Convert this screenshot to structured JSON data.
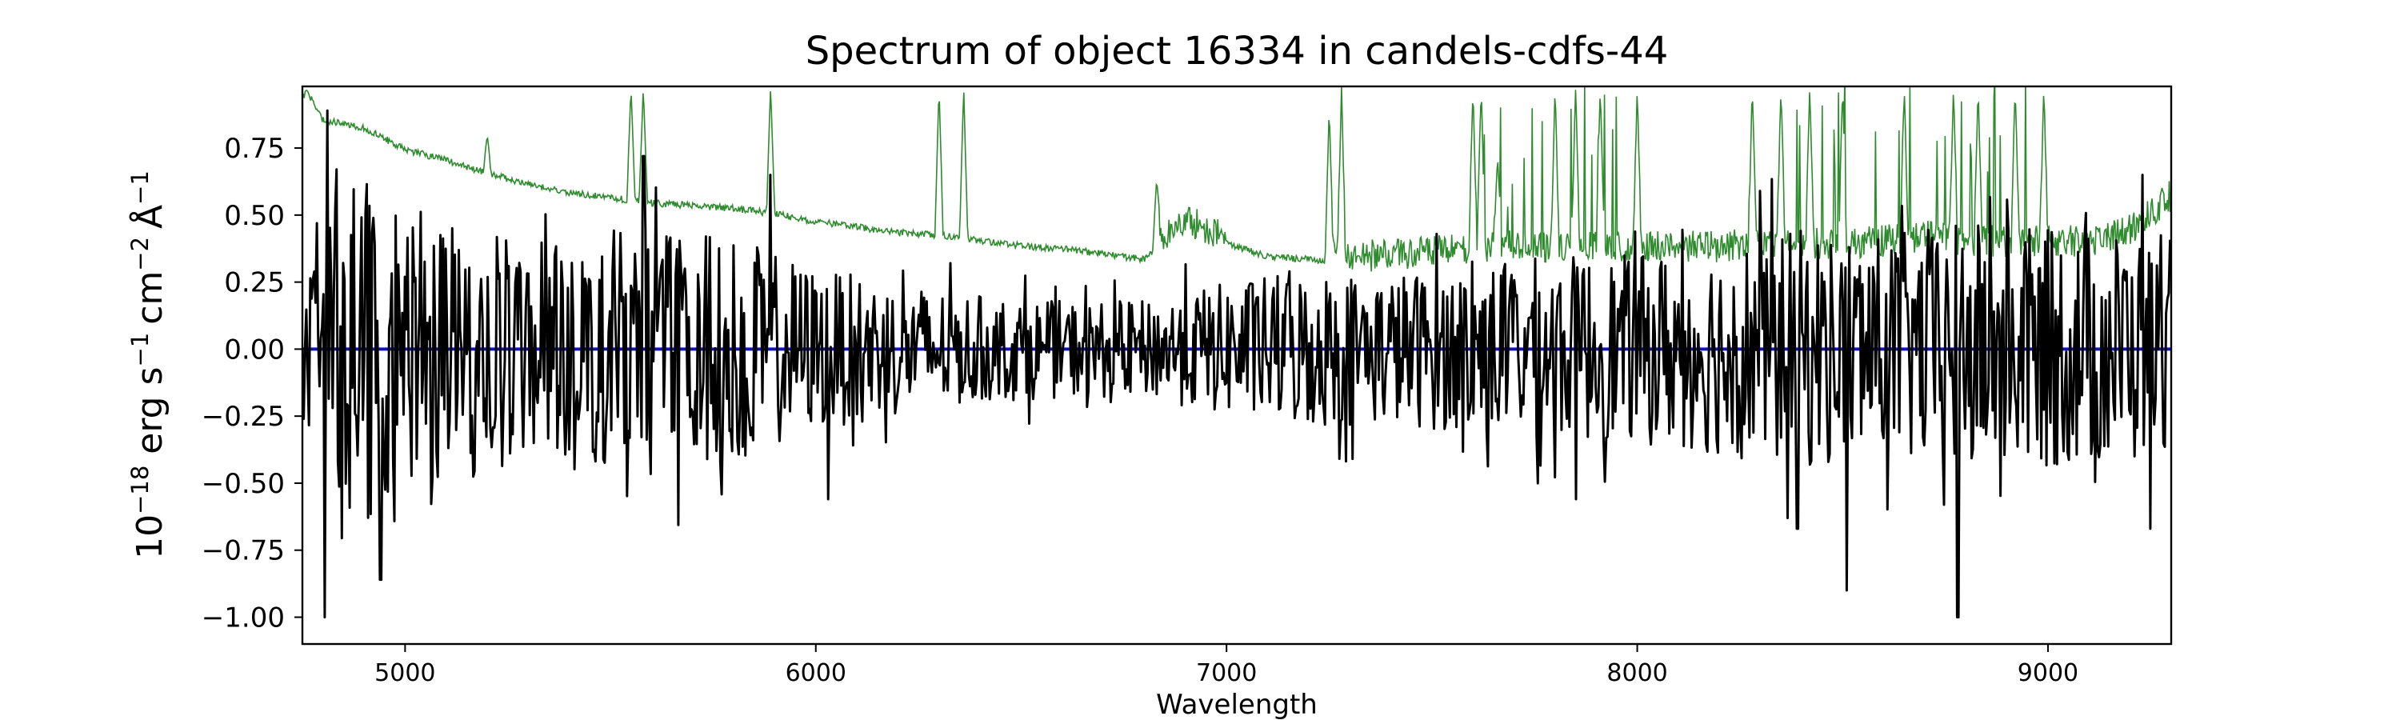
{
  "chart_data": {
    "type": "line",
    "title": "Spectrum of object 16334 in candels-cdfs-44",
    "xlabel": "Wavelength",
    "ylabel": {
      "base": "10",
      "exp": "−18",
      "units": [
        {
          "text": "erg s",
          "sup": "−1"
        },
        {
          "text": "cm",
          "sup": "−2"
        },
        {
          "text": "Å",
          "sup": "−1"
        }
      ]
    },
    "xlim": [
      4750,
      9300
    ],
    "ylim": [
      -1.1,
      0.98
    ],
    "x_ticks": [
      5000,
      6000,
      7000,
      8000,
      9000
    ],
    "x_tick_labels": [
      "5000",
      "6000",
      "7000",
      "8000",
      "9000"
    ],
    "y_ticks": [
      -1.0,
      -0.75,
      -0.5,
      -0.25,
      0.0,
      0.25,
      0.5,
      0.75
    ],
    "y_tick_labels": [
      "−1.00",
      "−0.75",
      "−0.50",
      "−0.25",
      "0.00",
      "0.25",
      "0.50",
      "0.75"
    ],
    "grid": false,
    "series": [
      {
        "role": "noise",
        "color": "#2e8b2e",
        "baseline_points": [
          [
            4750,
            0.93
          ],
          [
            4760,
            0.96
          ],
          [
            4800,
            0.85
          ],
          [
            4900,
            0.82
          ],
          [
            5000,
            0.74
          ],
          [
            5100,
            0.7
          ],
          [
            5200,
            0.65
          ],
          [
            5300,
            0.61
          ],
          [
            5400,
            0.58
          ],
          [
            5500,
            0.56
          ],
          [
            5600,
            0.54
          ],
          [
            5700,
            0.53
          ],
          [
            5800,
            0.52
          ],
          [
            5900,
            0.5
          ],
          [
            6000,
            0.47
          ],
          [
            6100,
            0.45
          ],
          [
            6200,
            0.43
          ],
          [
            6300,
            0.42
          ],
          [
            6400,
            0.4
          ],
          [
            6500,
            0.38
          ],
          [
            6600,
            0.37
          ],
          [
            6700,
            0.35
          ],
          [
            6800,
            0.33
          ],
          [
            6900,
            0.46
          ],
          [
            7000,
            0.39
          ],
          [
            7100,
            0.34
          ],
          [
            7200,
            0.33
          ],
          [
            7300,
            0.32
          ],
          [
            7400,
            0.33
          ],
          [
            7500,
            0.34
          ],
          [
            7600,
            0.35
          ],
          [
            7700,
            0.36
          ],
          [
            7800,
            0.36
          ],
          [
            7900,
            0.36
          ],
          [
            8000,
            0.36
          ],
          [
            8100,
            0.36
          ],
          [
            8200,
            0.36
          ],
          [
            8300,
            0.37
          ],
          [
            8400,
            0.37
          ],
          [
            8500,
            0.37
          ],
          [
            8600,
            0.38
          ],
          [
            8700,
            0.4
          ],
          [
            8800,
            0.38
          ],
          [
            8900,
            0.38
          ],
          [
            9000,
            0.38
          ],
          [
            9100,
            0.38
          ],
          [
            9200,
            0.42
          ],
          [
            9300,
            0.55
          ]
        ],
        "peaks": [
          [
            5200,
            0.8
          ],
          [
            5550,
            0.98
          ],
          [
            5580,
            0.98
          ],
          [
            5890,
            0.98
          ],
          [
            6300,
            0.98
          ],
          [
            6360,
            0.98
          ],
          [
            6830,
            0.64
          ],
          [
            7250,
            0.9
          ],
          [
            7280,
            0.98
          ],
          [
            7600,
            0.98
          ],
          [
            7620,
            0.98
          ],
          [
            7660,
            0.72
          ],
          [
            7800,
            0.98
          ],
          [
            7850,
            0.98
          ],
          [
            7910,
            0.98
          ],
          [
            8000,
            0.98
          ],
          [
            8280,
            0.98
          ],
          [
            8350,
            0.98
          ],
          [
            8420,
            0.98
          ],
          [
            8500,
            0.98
          ],
          [
            8650,
            0.98
          ],
          [
            8770,
            0.98
          ],
          [
            8830,
            0.98
          ],
          [
            8920,
            0.98
          ],
          [
            8990,
            0.98
          ]
        ]
      },
      {
        "role": "flux",
        "color": "#000000",
        "envelope_points": [
          [
            4750,
            0.32
          ],
          [
            4800,
            0.55
          ],
          [
            4900,
            0.65
          ],
          [
            5000,
            0.5
          ],
          [
            5200,
            0.45
          ],
          [
            5400,
            0.4
          ],
          [
            5600,
            0.5
          ],
          [
            5800,
            0.42
          ],
          [
            6000,
            0.3
          ],
          [
            6200,
            0.25
          ],
          [
            6400,
            0.2
          ],
          [
            6600,
            0.18
          ],
          [
            6800,
            0.18
          ],
          [
            7000,
            0.25
          ],
          [
            7200,
            0.3
          ],
          [
            7400,
            0.28
          ],
          [
            7600,
            0.32
          ],
          [
            7800,
            0.35
          ],
          [
            8000,
            0.35
          ],
          [
            8200,
            0.4
          ],
          [
            8400,
            0.45
          ],
          [
            8600,
            0.42
          ],
          [
            8800,
            0.48
          ],
          [
            9000,
            0.45
          ],
          [
            9200,
            0.45
          ],
          [
            9300,
            0.35
          ]
        ],
        "notable_points": [
          [
            4810,
            0.89
          ],
          [
            4805,
            -1.0
          ],
          [
            4940,
            -0.86
          ],
          [
            5580,
            0.72
          ],
          [
            5890,
            0.65
          ],
          [
            6030,
            -0.56
          ],
          [
            7850,
            -0.56
          ],
          [
            8390,
            -0.67
          ],
          [
            8510,
            -0.9
          ],
          [
            8780,
            -1.0
          ],
          [
            9230,
            0.65
          ],
          [
            9250,
            -0.67
          ]
        ]
      },
      {
        "role": "zero",
        "color": "#1010c0",
        "points": [
          [
            4750,
            0.0
          ],
          [
            9300,
            0.0
          ]
        ]
      }
    ]
  }
}
